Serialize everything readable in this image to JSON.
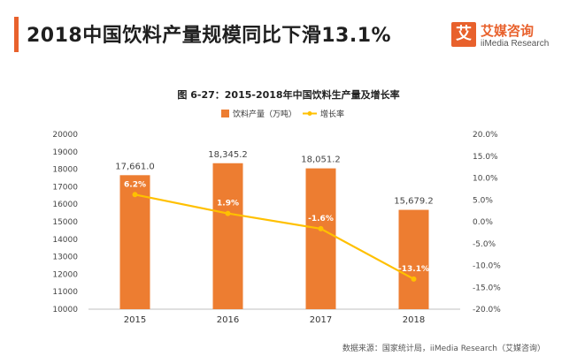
{
  "header": {
    "title": "2018中国饮料产量规模同比下滑13.1%",
    "accent_color": "#e8612c"
  },
  "logo": {
    "mark": "艾",
    "name": "艾媒咨询",
    "sub": "iiMedia Research"
  },
  "source": "数据来源：国家统计局，iiMedia Research（艾媒咨询）",
  "chart_data": {
    "type": "bar",
    "title": "图 6-27：2015-2018年中国饮料生产量及增长率",
    "categories": [
      "2015",
      "2016",
      "2017",
      "2018"
    ],
    "series": [
      {
        "name": "饮料产量（万吨）",
        "type": "bar",
        "axis": "left",
        "color": "#ed7d31",
        "values": [
          17661.0,
          18345.2,
          18051.2,
          15679.2
        ],
        "labels": [
          "17,661.0",
          "18,345.2",
          "18,051.2",
          "15,679.2"
        ]
      },
      {
        "name": "增长率",
        "type": "line",
        "axis": "right",
        "color": "#ffc000",
        "values": [
          6.2,
          1.9,
          -1.6,
          -13.1
        ],
        "labels": [
          "6.2%",
          "1.9%",
          "-1.6%",
          "-13.1%"
        ]
      }
    ],
    "y_left": {
      "ylim": [
        10000,
        20000
      ],
      "ticks": [
        "10000",
        "11000",
        "12000",
        "13000",
        "14000",
        "15000",
        "16000",
        "17000",
        "18000",
        "19000",
        "20000"
      ]
    },
    "y_right": {
      "ylim": [
        -20,
        20
      ],
      "ticks": [
        "-20.0%",
        "-15.0%",
        "-10.0%",
        "-5.0%",
        "0.0%",
        "5.0%",
        "10.0%",
        "15.0%",
        "20.0%"
      ]
    },
    "legend_position": "top-center",
    "grid": false
  }
}
